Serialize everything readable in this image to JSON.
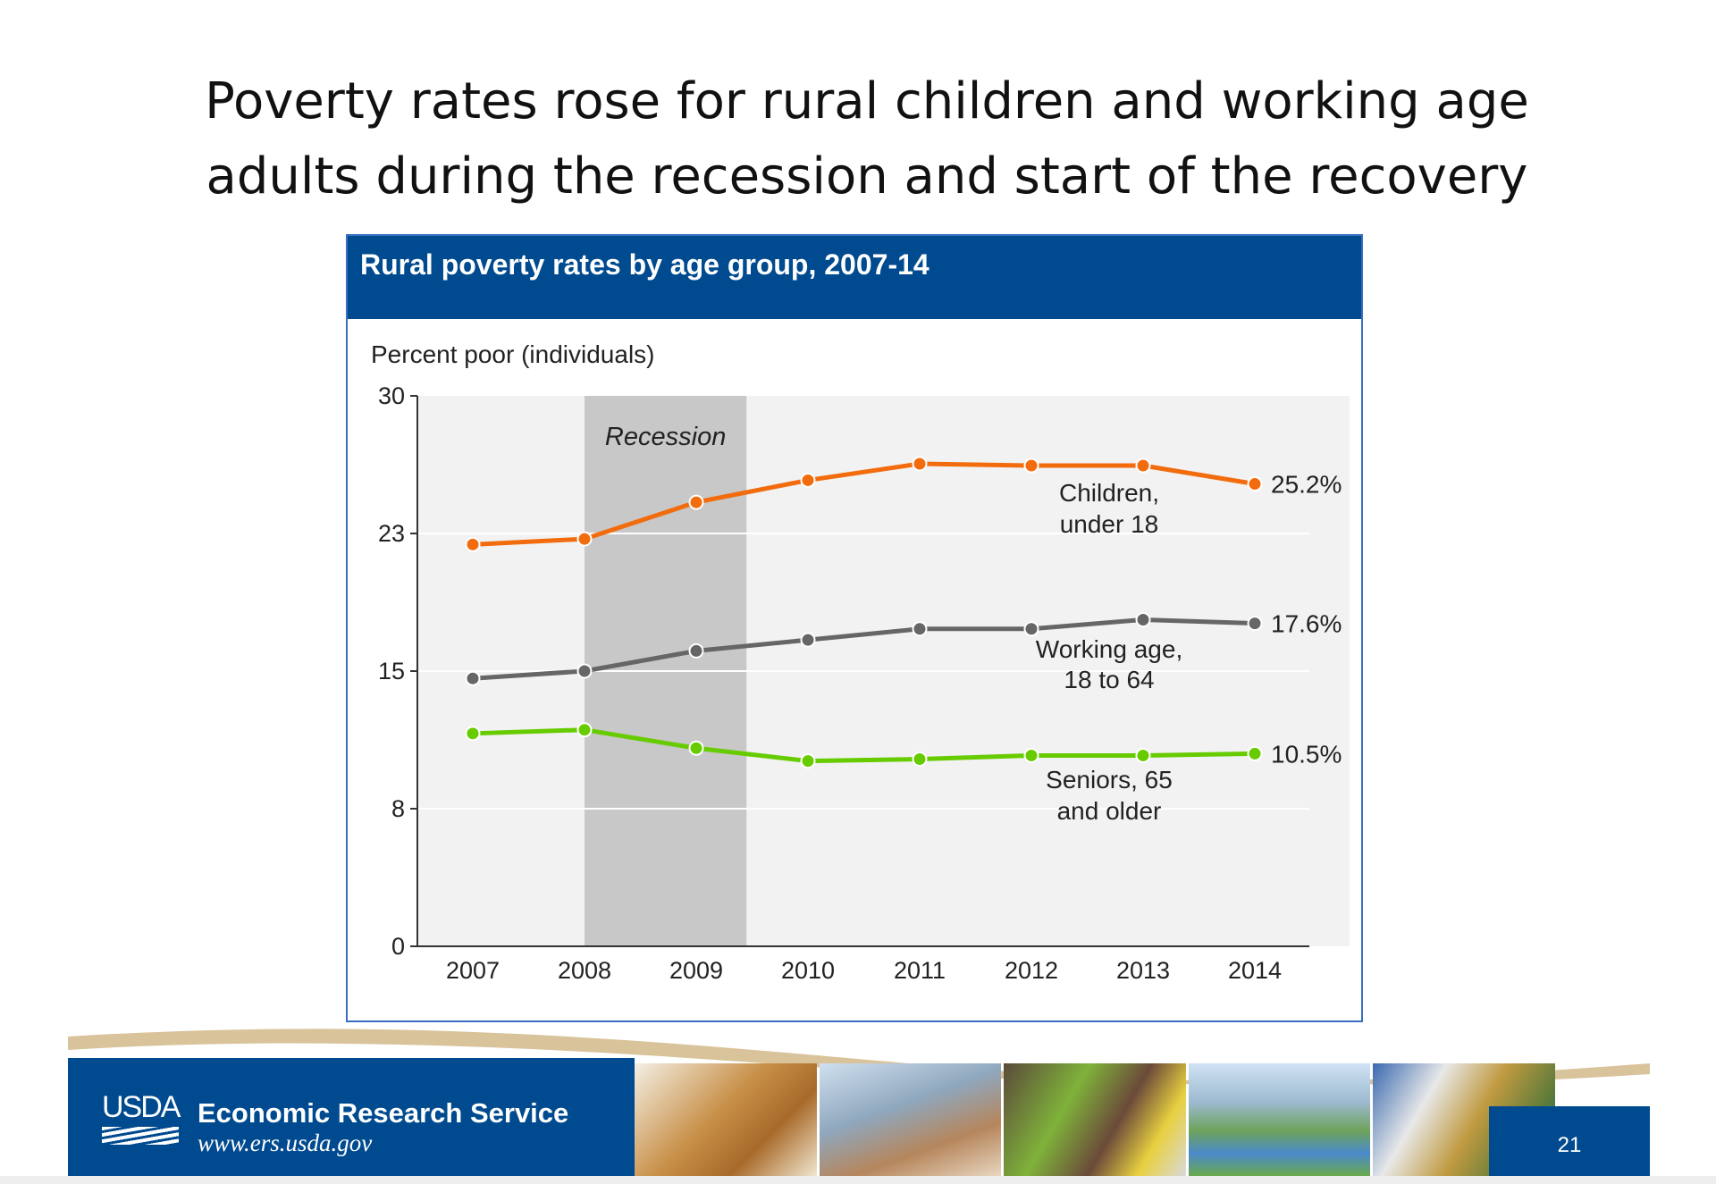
{
  "slide": {
    "title_line1": "Poverty rates rose for rural children and working age",
    "title_line2": "adults during the recession and start of the recovery",
    "page_number": "21"
  },
  "chart_header": "Rural poverty rates by age group, 2007-14",
  "footer": {
    "logo_text": "USDA",
    "org_name": "Economic Research Service",
    "url": "www.ers.usda.gov"
  },
  "chart_data": {
    "type": "line",
    "title": "Rural poverty rates by age group, 2007-14",
    "ylabel": "Percent poor (individuals)",
    "xlabel": "",
    "x": [
      "2007",
      "2008",
      "2009",
      "2010",
      "2011",
      "2012",
      "2013",
      "2014"
    ],
    "ylim": [
      0,
      30
    ],
    "yticks": [
      0,
      7.5,
      15,
      22.5,
      30
    ],
    "ytick_labels": [
      "0",
      "8",
      "15",
      "23",
      "30"
    ],
    "grid": "horizontal",
    "shaded_region": {
      "label": "Recession",
      "from": "2008",
      "to": "2009.45",
      "color": "#c8c8c8"
    },
    "series": [
      {
        "name": "Children, under 18",
        "label_lines": [
          "Children,",
          "under 18"
        ],
        "color": "#f26c0d",
        "end_label": "25.2%",
        "values": [
          21.9,
          22.2,
          24.2,
          25.4,
          26.3,
          26.2,
          26.2,
          25.2
        ]
      },
      {
        "name": "Working age, 18 to 64",
        "label_lines": [
          "Working age,",
          "18 to 64"
        ],
        "color": "#666666",
        "end_label": "17.6%",
        "values": [
          14.6,
          15.0,
          16.1,
          16.7,
          17.3,
          17.3,
          17.8,
          17.6
        ]
      },
      {
        "name": "Seniors, 65 and older",
        "label_lines": [
          "Seniors, 65",
          "and older"
        ],
        "color": "#66cc00",
        "end_label": "10.5%",
        "values": [
          11.6,
          11.8,
          10.8,
          10.1,
          10.2,
          10.4,
          10.4,
          10.5
        ]
      }
    ]
  },
  "colors": {
    "header_blue": "#004a8f",
    "plot_bg": "#f2f2f2",
    "wave_tan": "#d8c39a"
  }
}
